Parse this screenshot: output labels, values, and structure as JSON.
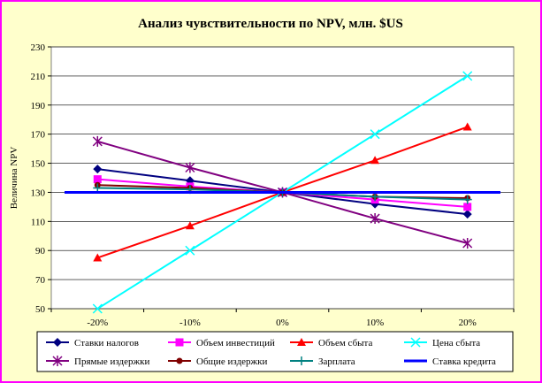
{
  "chart_data": {
    "type": "line",
    "title": "Анализ чувствительности по NPV, млн. $US",
    "xlabel": "",
    "ylabel": "Величина NPV",
    "categories": [
      "-20%",
      "-10%",
      "0%",
      "10%",
      "20%"
    ],
    "ylim": [
      50,
      230
    ],
    "yticks": [
      50,
      70,
      90,
      110,
      130,
      150,
      170,
      190,
      210,
      230
    ],
    "grid": true,
    "legend_position": "bottom",
    "series": [
      {
        "name": "Ставки налогов",
        "color": "#000080",
        "marker": "diamond",
        "values": [
          146,
          138,
          130,
          122,
          115
        ]
      },
      {
        "name": "Объем инвестиций",
        "color": "#ff00ff",
        "marker": "square",
        "values": [
          139,
          134,
          130,
          125,
          120
        ]
      },
      {
        "name": "Объем сбыта",
        "color": "#ff0000",
        "marker": "triangle",
        "values": [
          85,
          107,
          130,
          152,
          175
        ]
      },
      {
        "name": "Цена сбыта",
        "color": "#00ffff",
        "marker": "x",
        "values": [
          50,
          90,
          130,
          170,
          210
        ]
      },
      {
        "name": "Прямые издержки",
        "color": "#800080",
        "marker": "star",
        "values": [
          165,
          147,
          130,
          112,
          95
        ]
      },
      {
        "name": "Общие издержки",
        "color": "#800000",
        "marker": "circle",
        "values": [
          135,
          133,
          130,
          127,
          126
        ]
      },
      {
        "name": "Зарплата",
        "color": "#008080",
        "marker": "plus",
        "values": [
          133,
          132,
          130,
          127,
          125
        ]
      },
      {
        "name": "Ставка кредита",
        "color": "#0000ff",
        "marker": "none",
        "values": [
          130,
          130,
          130,
          130,
          130
        ]
      }
    ]
  }
}
